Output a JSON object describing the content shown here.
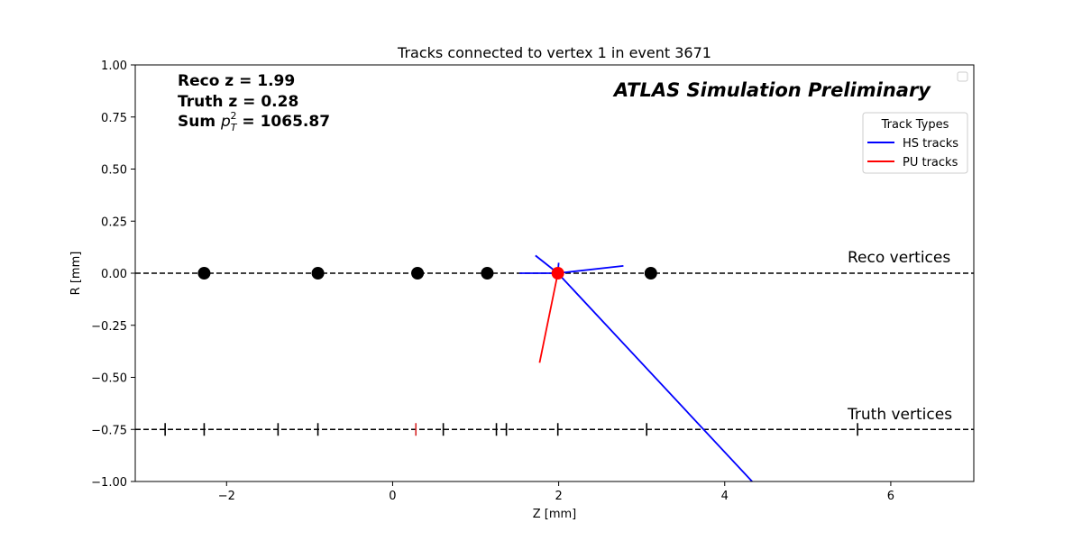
{
  "chart_data": {
    "type": "scatter",
    "title": "Tracks connected to vertex 1 in event 3671",
    "xlabel": "Z [mm]",
    "ylabel": "R [mm]",
    "xlim": [
      -3.1,
      7.0
    ],
    "ylim": [
      -1.0,
      1.0
    ],
    "xticks": [
      -2,
      0,
      2,
      4,
      6
    ],
    "xtick_labels": [
      "−2",
      "0",
      "2",
      "4",
      "6"
    ],
    "yticks": [
      -1.0,
      -0.75,
      -0.5,
      -0.25,
      0.0,
      0.25,
      0.5,
      0.75,
      1.0
    ],
    "ytick_labels": [
      "−1.00",
      "−0.75",
      "−0.50",
      "−0.25",
      "0.00",
      "0.25",
      "0.50",
      "0.75",
      "1.00"
    ],
    "grid": false,
    "annotation_lines": [
      "Reco z = 1.99",
      "Truth z = 0.28",
      "Sum p_T^2 = 1065.87"
    ],
    "watermark": "ATLAS Simulation Preliminary",
    "reco_line_label": "Reco vertices",
    "truth_line_label": "Truth vertices",
    "reco_line_y": 0.0,
    "truth_line_y": -0.75,
    "reco_vertices_z": [
      -2.27,
      -0.9,
      0.3,
      1.14,
      3.11
    ],
    "selected_reco_vertex": {
      "z": 1.99,
      "r": 0.0,
      "color": "#ff0000"
    },
    "truth_vertices_z": [
      -2.74,
      -2.27,
      -1.38,
      -0.9,
      0.61,
      1.25,
      1.37,
      1.99,
      3.06,
      5.6
    ],
    "selected_truth_vertex_z": 0.28,
    "selected_truth_color": "#d62728",
    "legend": {
      "title": "Track Types",
      "placement": "upper right",
      "entries": [
        {
          "label": "HS tracks",
          "color": "#0000ff"
        },
        {
          "label": "PU tracks",
          "color": "#ff0000"
        }
      ]
    },
    "series": [
      {
        "name": "HS tracks",
        "color": "#0000ff",
        "segments": [
          [
            [
              1.99,
              0.0
            ],
            [
              4.33,
              -1.0
            ]
          ],
          [
            [
              1.99,
              0.0
            ],
            [
              2.78,
              0.035
            ]
          ],
          [
            [
              1.99,
              0.0
            ],
            [
              1.72,
              0.085
            ]
          ],
          [
            [
              1.99,
              0.0
            ],
            [
              1.53,
              0.0
            ]
          ],
          [
            [
              1.99,
              0.0
            ],
            [
              2.0,
              0.05
            ]
          ]
        ]
      },
      {
        "name": "PU tracks",
        "color": "#ff0000",
        "segments": [
          [
            [
              1.99,
              0.0
            ],
            [
              1.77,
              -0.43
            ]
          ]
        ]
      }
    ]
  }
}
